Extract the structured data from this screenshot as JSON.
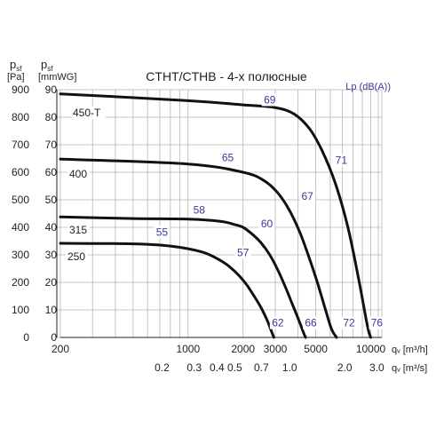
{
  "chart_data": {
    "type": "line",
    "title": "CTHT/CTHB - 4-х полюсные",
    "y_left": {
      "label_main": "p",
      "label_sub": "sf",
      "unit": "[Pa]",
      "ticks": [
        0,
        100,
        200,
        300,
        400,
        500,
        600,
        700,
        800,
        900
      ],
      "lim": [
        0,
        900
      ]
    },
    "y_inner": {
      "label_main": "p",
      "label_sub": "sf",
      "unit": "[mmWG]",
      "ticks": [
        0,
        10,
        20,
        30,
        40,
        50,
        60,
        70,
        80,
        90
      ]
    },
    "x_top": {
      "label": "qᵥ [m³/h]",
      "scale": "log",
      "lim": [
        200,
        11500
      ],
      "ticks": [
        "200",
        "1000",
        "2000",
        "3000",
        "5000",
        "10000"
      ],
      "tick_values": [
        200,
        1000,
        2000,
        3000,
        5000,
        10000
      ]
    },
    "x_bottom": {
      "label": "qᵥ [m³/s]",
      "ticks": [
        "0.2",
        "0.3",
        "0.4",
        "0.5",
        "0.7",
        "1.0",
        "2.0",
        "3.0"
      ],
      "tick_values": [
        0.2,
        0.3,
        0.4,
        0.5,
        0.7,
        1.0,
        2.0,
        3.0
      ]
    },
    "lp_label": "Lp (dB(A))",
    "grid": true,
    "series": [
      {
        "name": "450-T",
        "x": [
          200,
          1000,
          2000,
          3000,
          3800,
          4600,
          5400,
          6400,
          7500,
          8600,
          9600,
          10000
        ],
        "y": [
          885,
          860,
          845,
          835,
          812,
          760,
          680,
          560,
          400,
          210,
          40,
          0
        ]
      },
      {
        "name": "400",
        "x": [
          200,
          1000,
          2000,
          2600,
          3100,
          3600,
          4100,
          4600,
          5100,
          5600,
          6100,
          6500
        ],
        "y": [
          648,
          630,
          600,
          570,
          525,
          460,
          380,
          290,
          200,
          110,
          30,
          0
        ]
      },
      {
        "name": "315",
        "x": [
          200,
          500,
          1000,
          1500,
          1800,
          2000,
          2200,
          2500,
          2800,
          3100,
          3400,
          3700,
          4000,
          4300,
          4400
        ],
        "y": [
          438,
          432,
          430,
          422,
          410,
          400,
          380,
          345,
          300,
          245,
          185,
          125,
          70,
          15,
          0
        ]
      },
      {
        "name": "250",
        "x": [
          200,
          500,
          800,
          1200,
          1500,
          1700,
          1900,
          2100,
          2300,
          2500,
          2700,
          2850,
          2950
        ],
        "y": [
          342,
          340,
          332,
          310,
          280,
          255,
          225,
          190,
          150,
          110,
          65,
          25,
          0
        ]
      }
    ],
    "lp_annotations": [
      {
        "text": "69",
        "x": 2800,
        "y": 850
      },
      {
        "text": "71",
        "x": 6900,
        "y": 630
      },
      {
        "text": "65",
        "x": 1650,
        "y": 640
      },
      {
        "text": "67",
        "x": 4500,
        "y": 500
      },
      {
        "text": "58",
        "x": 1150,
        "y": 450
      },
      {
        "text": "60",
        "x": 2700,
        "y": 400
      },
      {
        "text": "55",
        "x": 720,
        "y": 370
      },
      {
        "text": "57",
        "x": 2000,
        "y": 295
      },
      {
        "text": "62",
        "x": 3100,
        "y": 40
      },
      {
        "text": "66",
        "x": 4700,
        "y": 40
      },
      {
        "text": "72",
        "x": 7600,
        "y": 40
      },
      {
        "text": "76",
        "x": 10800,
        "y": 40
      }
    ]
  }
}
